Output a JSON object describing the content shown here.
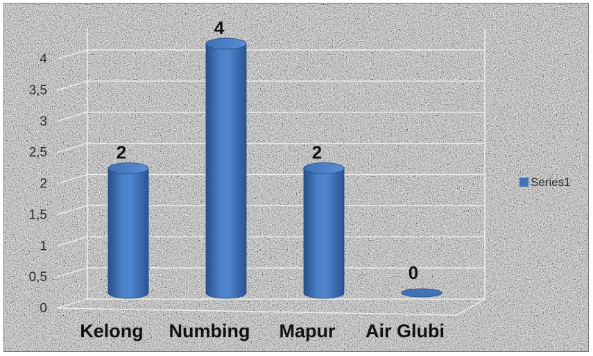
{
  "chart_data": {
    "type": "bar",
    "categories": [
      "Kelong",
      "Numbing",
      "Mapur",
      "Air Glubi"
    ],
    "series": [
      {
        "name": "Series1",
        "values": [
          2,
          4,
          2,
          0
        ]
      }
    ],
    "yticks": [
      "0",
      "0,5",
      "1",
      "1,5",
      "2",
      "2,5",
      "3",
      "3,5",
      "4"
    ],
    "ylim": [
      0,
      4
    ],
    "grid": true,
    "legend": "right",
    "bar_style": "3d-cylinder",
    "colors": {
      "bar": "#3f72b8",
      "bar_light": "#7aa3dc",
      "bar_dark": "#24487e",
      "background": "#9a9a9a"
    }
  }
}
